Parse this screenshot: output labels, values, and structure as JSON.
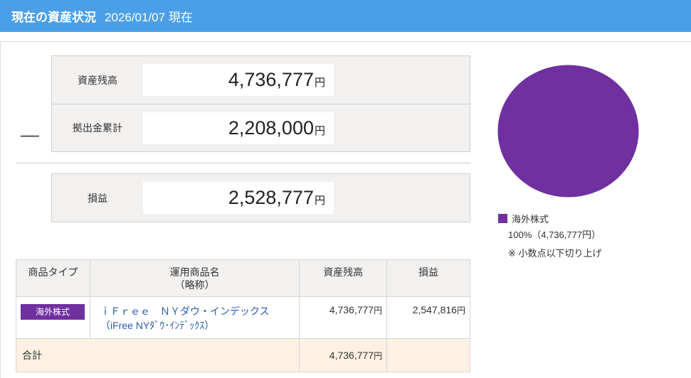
{
  "header": {
    "title": "現在の資産状況",
    "date": "2026/01/07 現在"
  },
  "summary": {
    "balance_label": "資産残高",
    "balance_value": "4,736,777",
    "contribution_label": "拠出金累計",
    "contribution_value": "2,208,000",
    "minus_sign": "―",
    "pl_label": "損益",
    "pl_value": "2,528,777",
    "yen": "円"
  },
  "chart_data": {
    "type": "pie",
    "slices": [
      {
        "name": "海外株式",
        "value": 4736777,
        "percent": 100,
        "color": "#7030a0"
      }
    ]
  },
  "legend": {
    "swatch_color": "#7030a0",
    "name": "海外株式",
    "detail": "100%（4,736,777円）",
    "note": "※ 小数点以下切り上げ"
  },
  "table": {
    "headers": {
      "type": "商品タイプ",
      "name_line1": "運用商品名",
      "name_line2": "（略称）",
      "balance": "資産残高",
      "pl": "損益"
    },
    "rows": [
      {
        "type_badge": "海外株式",
        "name": "ｉＦｒｅｅ　ＮＹダウ・インデックス",
        "abbr": "（iFree NYﾀﾞｳ･ｲﾝﾃﾞｯｸｽ）",
        "balance": "4,736,777",
        "pl": "2,547,816"
      }
    ],
    "total": {
      "label": "合計",
      "balance": "4,736,777"
    },
    "yen": "円"
  },
  "colors": {
    "header_bg": "#4a9fe8",
    "accent_purple": "#7030a0",
    "total_row_bg": "#fdf1e4"
  }
}
